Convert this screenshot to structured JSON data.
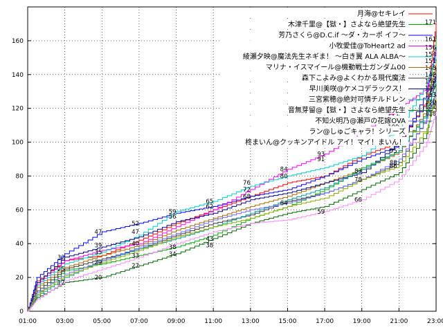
{
  "chart_data": {
    "type": "line",
    "title": "",
    "xlabel": "",
    "ylabel": "",
    "xlim": [
      1,
      23
    ],
    "ylim": [
      0,
      180
    ],
    "grid": true,
    "legend_position": "top-right",
    "x_ticks": [
      "01:00",
      "03:00",
      "05:00",
      "07:00",
      "09:00",
      "11:00",
      "13:00",
      "15:00",
      "17:00",
      "19:00",
      "21:00",
      "23:00"
    ],
    "y_ticks": [
      0,
      20,
      40,
      60,
      80,
      100,
      120,
      140,
      160
    ],
    "series": [
      {
        "name": "月海@セキレイ",
        "color": "#ff0000",
        "x": [
          1,
          1.5,
          3,
          5,
          7,
          9,
          11,
          13,
          15,
          17,
          19,
          21,
          22.5,
          23
        ],
        "y": [
          0,
          18,
          30,
          33,
          42,
          52,
          60,
          68,
          76,
          80,
          92,
          100,
          125,
          171
        ]
      },
      {
        "name": "木津千里@【獄・】さよなら絶望先生",
        "color": "#00aa00",
        "x": [
          1,
          1.5,
          3,
          5,
          7,
          9,
          11,
          13,
          15,
          17,
          19,
          21,
          22.5,
          23
        ],
        "y": [
          0,
          10,
          24,
          28,
          33,
          38,
          45,
          55,
          62,
          72,
          85,
          95,
          118,
          161
        ]
      },
      {
        "name": "芳乃さくら@D.C.if ～ダ・カーポ イフ～",
        "color": "#0000ff",
        "x": [
          1,
          1.5,
          3,
          5,
          7,
          9,
          11,
          13,
          15,
          17,
          19,
          21,
          22.5,
          23
        ],
        "y": [
          0,
          20,
          34,
          47,
          52,
          58,
          62,
          68,
          72,
          80,
          90,
          98,
          130,
          156
        ]
      },
      {
        "name": "小牧愛佳@ToHeart2 ad",
        "color": "#ff00ff",
        "x": [
          1,
          1.5,
          3,
          5,
          7,
          9,
          11,
          13,
          15,
          17,
          19,
          21,
          22.5,
          23
        ],
        "y": [
          0,
          16,
          30,
          36,
          40,
          50,
          60,
          72,
          84,
          93,
          106,
          120,
          132,
          154
        ]
      },
      {
        "name": "綾瀬夕映@魔法先生ネギま！ ～白き翼 ALA ALBA～",
        "color": "#00cccc",
        "x": [
          1,
          1.5,
          3,
          5,
          7,
          9,
          11,
          13,
          15,
          17,
          19,
          21,
          22.5,
          23
        ],
        "y": [
          0,
          15,
          28,
          35,
          45,
          59,
          65,
          74,
          80,
          85,
          92,
          108,
          135,
          151
        ]
      },
      {
        "name": "マリナ・イスマイール@機動戦士ガンダム00",
        "color": "#aa6600",
        "x": [
          1,
          1.5,
          3,
          5,
          7,
          9,
          11,
          13,
          15,
          17,
          19,
          21,
          22.5,
          23
        ],
        "y": [
          0,
          14,
          26,
          33,
          39,
          48,
          55,
          62,
          68,
          76,
          84,
          94,
          120,
          148
        ]
      },
      {
        "name": "森下こよみ@よくわかる現代魔法",
        "color": "#333333",
        "x": [
          1,
          1.5,
          3,
          5,
          7,
          9,
          11,
          13,
          15,
          17,
          19,
          21,
          22.5,
          23
        ],
        "y": [
          0,
          12,
          25,
          31,
          37,
          45,
          52,
          57,
          65,
          70,
          78,
          88,
          115,
          142
        ]
      },
      {
        "name": "早川美咲@ケメコデラックス！",
        "color": "#000088",
        "x": [
          1,
          1.5,
          3,
          5,
          7,
          9,
          11,
          13,
          15,
          17,
          19,
          21,
          22.5,
          23
        ],
        "y": [
          0,
          17,
          32,
          38,
          44,
          53,
          58,
          66,
          70,
          76,
          82,
          100,
          124,
          140
        ]
      },
      {
        "name": "三宮紫穂@絶対可憐チルドレン",
        "color": "#009999",
        "x": [
          1,
          1.5,
          3,
          5,
          7,
          9,
          11,
          13,
          15,
          17,
          19,
          21,
          22.5,
          23
        ],
        "y": [
          0,
          9,
          20,
          30,
          37,
          43,
          50,
          58,
          66,
          73,
          84,
          95,
          117,
          137
        ]
      },
      {
        "name": "音無芽留@【獄・】さよなら絶望先生",
        "color": "#006600",
        "x": [
          1,
          1.5,
          3,
          5,
          7,
          9,
          11,
          13,
          15,
          17,
          19,
          21,
          22.5,
          23
        ],
        "y": [
          0,
          8,
          17,
          20,
          27,
          34,
          43,
          52,
          58,
          62,
          72,
          82,
          105,
          133
        ]
      },
      {
        "name": "不知火明乃@瀬戸の花嫁OVA",
        "color": "#6666ff",
        "x": [
          1,
          1.5,
          3,
          5,
          7,
          9,
          11,
          13,
          15,
          17,
          19,
          21,
          22.5,
          23
        ],
        "y": [
          0,
          11,
          22,
          30,
          38,
          46,
          54,
          60,
          64,
          70,
          78,
          90,
          114,
          130
        ]
      },
      {
        "name": "ラン@しゅごキャラ！シリーズ",
        "color": "#88aa00",
        "x": [
          1,
          1.5,
          3,
          5,
          7,
          9,
          11,
          13,
          15,
          17,
          19,
          21,
          22.5,
          23
        ],
        "y": [
          0,
          10,
          21,
          29,
          36,
          44,
          50,
          55,
          62,
          67,
          78,
          86,
          108,
          127
        ]
      },
      {
        "name": "柊まいん@クッキンアイドル アイ！マイ！まいん！",
        "color": "#ff88ff",
        "x": [
          1,
          1.5,
          3,
          5,
          7,
          9,
          11,
          13,
          15,
          17,
          19,
          21,
          22.5,
          23
        ],
        "y": [
          0,
          7,
          18,
          25,
          32,
          40,
          47,
          52,
          54,
          59,
          66,
          78,
          100,
          118
        ]
      }
    ],
    "annotations": [
      {
        "text": "171",
        "x": 22.7,
        "y": 171
      },
      {
        "text": "161",
        "x": 22.7,
        "y": 161
      },
      {
        "text": "156",
        "x": 22.7,
        "y": 156
      },
      {
        "text": "154",
        "x": 22.7,
        "y": 152
      },
      {
        "text": "151",
        "x": 22.7,
        "y": 148
      },
      {
        "text": "148",
        "x": 22.7,
        "y": 144
      },
      {
        "text": "142",
        "x": 22.7,
        "y": 140
      },
      {
        "text": "140",
        "x": 22.7,
        "y": 136
      },
      {
        "text": "137",
        "x": 22.7,
        "y": 132
      },
      {
        "text": "133",
        "x": 22.7,
        "y": 128
      },
      {
        "text": "130",
        "x": 22.7,
        "y": 124
      },
      {
        "text": "127",
        "x": 22.7,
        "y": 121
      },
      {
        "text": "118",
        "x": 22.7,
        "y": 117
      },
      {
        "text": "120",
        "x": 20.7,
        "y": 120
      },
      {
        "text": "114",
        "x": 20.7,
        "y": 115
      },
      {
        "text": "109",
        "x": 20.7,
        "y": 109
      },
      {
        "text": "106",
        "x": 18.8,
        "y": 106
      },
      {
        "text": "100",
        "x": 18.8,
        "y": 100
      },
      {
        "text": "93",
        "x": 16.8,
        "y": 93
      },
      {
        "text": "91",
        "x": 16.8,
        "y": 90
      },
      {
        "text": "84",
        "x": 14.8,
        "y": 84
      },
      {
        "text": "80",
        "x": 14.8,
        "y": 80
      },
      {
        "text": "76",
        "x": 12.8,
        "y": 76
      },
      {
        "text": "72",
        "x": 12.8,
        "y": 72
      },
      {
        "text": "68",
        "x": 12.8,
        "y": 68
      },
      {
        "text": "65",
        "x": 10.8,
        "y": 65
      },
      {
        "text": "62",
        "x": 10.8,
        "y": 62
      },
      {
        "text": "59",
        "x": 8.8,
        "y": 59
      },
      {
        "text": "56",
        "x": 8.8,
        "y": 56
      },
      {
        "text": "52",
        "x": 6.8,
        "y": 52
      },
      {
        "text": "47",
        "x": 6.8,
        "y": 47
      },
      {
        "text": "47",
        "x": 4.8,
        "y": 47
      },
      {
        "text": "43",
        "x": 10.8,
        "y": 43
      },
      {
        "text": "40",
        "x": 6.8,
        "y": 40
      },
      {
        "text": "39",
        "x": 4.8,
        "y": 39
      },
      {
        "text": "38",
        "x": 10.8,
        "y": 39
      },
      {
        "text": "38",
        "x": 8.8,
        "y": 38
      },
      {
        "text": "35",
        "x": 4.8,
        "y": 35
      },
      {
        "text": "34",
        "x": 8.8,
        "y": 34
      },
      {
        "text": "33",
        "x": 6.8,
        "y": 33
      },
      {
        "text": "32",
        "x": 2.8,
        "y": 32
      },
      {
        "text": "29",
        "x": 4.8,
        "y": 29
      },
      {
        "text": "27",
        "x": 6.8,
        "y": 27
      },
      {
        "text": "25",
        "x": 2.8,
        "y": 25
      },
      {
        "text": "20",
        "x": 4.8,
        "y": 20
      },
      {
        "text": "17",
        "x": 2.8,
        "y": 17
      },
      {
        "text": "66",
        "x": 18.8,
        "y": 66
      },
      {
        "text": "64",
        "x": 14.8,
        "y": 64
      },
      {
        "text": "59",
        "x": 16.8,
        "y": 59
      },
      {
        "text": "86",
        "x": 20.7,
        "y": 86
      },
      {
        "text": "78",
        "x": 18.8,
        "y": 78
      },
      {
        "text": "83",
        "x": 18.8,
        "y": 83
      },
      {
        "text": "88",
        "x": 20.7,
        "y": 88
      },
      {
        "text": "95",
        "x": 20.7,
        "y": 95
      }
    ]
  }
}
